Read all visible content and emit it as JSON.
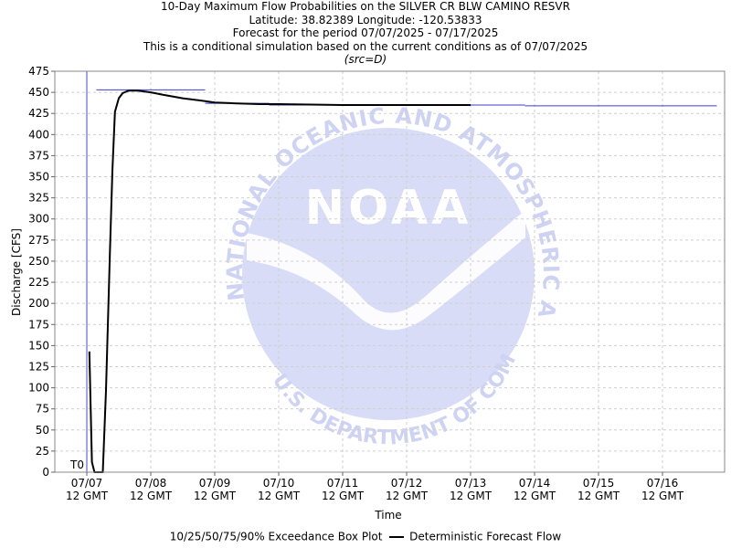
{
  "title_lines": {
    "line1": "10-Day Maximum Flow Probabilities on the SILVER CR BLW CAMINO RESVR",
    "line2": "Latitude: 38.82389 Longitude: -120.53833",
    "line3": "Forecast for the period 07/07/2025 - 07/17/2025",
    "line4": "This is a conditional simulation based on the current conditions as of 07/07/2025",
    "line5": "(src=D)"
  },
  "watermark": {
    "logo_text": "NOAA",
    "ring_text_top": "NATIONAL OCEANIC AND ATMOSPHERIC ADMINISTRATION",
    "ring_text_bottom": "U.S. DEPARTMENT OF COMMERCE"
  },
  "legend": {
    "box_plot_label": "10/25/50/75/90% Exceedance Box Plot",
    "deterministic_label": "Deterministic Forecast Flow"
  },
  "chart_data": {
    "type": "line",
    "xlabel": "Time",
    "ylabel": "Discharge [CFS]",
    "ylim": [
      0,
      475
    ],
    "y_ticks": [
      0,
      25,
      50,
      75,
      100,
      125,
      150,
      175,
      200,
      225,
      250,
      275,
      300,
      325,
      350,
      375,
      400,
      425,
      450,
      475
    ],
    "xlim": [
      "07/07 06Z",
      "07/17 06Z"
    ],
    "x_ticks": [
      {
        "line1": "07/07",
        "line2": "12 GMT",
        "day": 0
      },
      {
        "line1": "07/08",
        "line2": "12 GMT",
        "day": 1
      },
      {
        "line1": "07/09",
        "line2": "12 GMT",
        "day": 2
      },
      {
        "line1": "07/10",
        "line2": "12 GMT",
        "day": 3
      },
      {
        "line1": "07/11",
        "line2": "12 GMT",
        "day": 4
      },
      {
        "line1": "07/12",
        "line2": "12 GMT",
        "day": 5
      },
      {
        "line1": "07/13",
        "line2": "12 GMT",
        "day": 6
      },
      {
        "line1": "07/14",
        "line2": "12 GMT",
        "day": 7
      },
      {
        "line1": "07/15",
        "line2": "12 GMT",
        "day": 8
      },
      {
        "line1": "07/16",
        "line2": "12 GMT",
        "day": 9
      }
    ],
    "grid": true,
    "t0_label": "T0",
    "t0_day": 0,
    "series": [
      {
        "name": "Deterministic Forecast Flow",
        "color": "#000000",
        "points": [
          [
            0.04,
            143
          ],
          [
            0.08,
            12
          ],
          [
            0.12,
            0
          ],
          [
            0.25,
            0
          ],
          [
            0.3,
            97
          ],
          [
            0.36,
            257
          ],
          [
            0.4,
            357
          ],
          [
            0.44,
            427
          ],
          [
            0.5,
            443
          ],
          [
            0.56,
            449
          ],
          [
            0.65,
            452
          ],
          [
            0.8,
            452
          ],
          [
            1.0,
            450
          ],
          [
            1.2,
            447
          ],
          [
            1.5,
            443
          ],
          [
            1.8,
            440
          ],
          [
            2.0,
            438
          ],
          [
            2.3,
            437
          ],
          [
            2.7,
            436
          ],
          [
            3.0,
            436
          ],
          [
            4.0,
            435
          ],
          [
            5.0,
            435
          ],
          [
            6.0,
            435
          ]
        ]
      }
    ],
    "exceedance_segments": [
      {
        "start": 0.15,
        "end": 1.85,
        "value": 453
      },
      {
        "start": 1.85,
        "end": 2.85,
        "value": 437
      },
      {
        "start": 2.85,
        "end": 3.85,
        "value": 435
      },
      {
        "start": 3.85,
        "end": 4.85,
        "value": 435
      },
      {
        "start": 4.85,
        "end": 5.85,
        "value": 435
      },
      {
        "start": 5.85,
        "end": 6.85,
        "value": 435
      },
      {
        "start": 6.85,
        "end": 7.85,
        "value": 434
      },
      {
        "start": 7.85,
        "end": 8.85,
        "value": 434
      },
      {
        "start": 8.85,
        "end": 9.85,
        "value": 434
      }
    ],
    "colors": {
      "exceedance": "#3b3bd0",
      "t0_line": "#4444cc",
      "watermark": "#d9dcf7",
      "watermark_text": "#cfd3f3",
      "grid": "#cfcfcf"
    }
  }
}
